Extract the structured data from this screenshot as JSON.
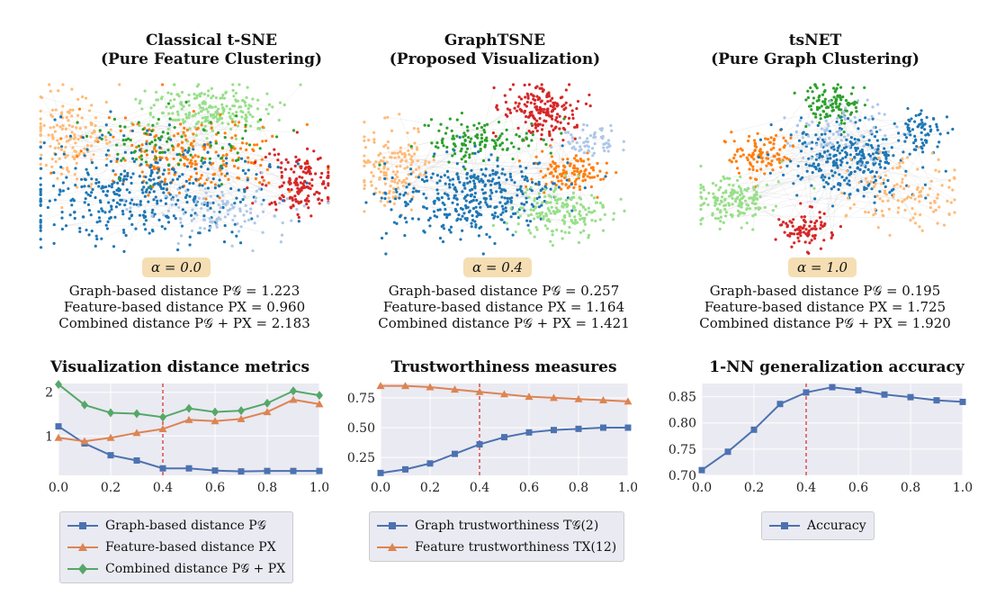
{
  "panels": [
    {
      "title_1": "Classical t-SNE",
      "title_2": "(Pure Feature Clustering)",
      "alpha": "α = 0.0",
      "metrics": [
        "Graph-based distance P𝒢 = 1.223",
        "Feature-based distance PX = 0.960",
        "Combined distance P𝒢 + PX = 2.183"
      ]
    },
    {
      "title_1": "GraphTSNE",
      "title_2": "(Proposed Visualization)",
      "alpha": "α = 0.4",
      "metrics": [
        "Graph-based distance P𝒢 = 0.257",
        "Feature-based distance PX = 1.164",
        "Combined distance P𝒢 + PX = 1.421"
      ]
    },
    {
      "title_1": "tsNET",
      "title_2": "(Pure Graph Clustering)",
      "alpha": "α = 1.0",
      "metrics": [
        "Graph-based distance P𝒢 = 0.195",
        "Feature-based distance PX = 1.725",
        "Combined distance P𝒢 + PX = 1.920"
      ]
    }
  ],
  "colors": {
    "blue": "#4c72b0",
    "orange": "#dd8452",
    "green": "#55a868",
    "red_line": "#d62728",
    "bg": "#eaeaf2",
    "grid": "#ffffff",
    "clusters": [
      "#1f77b4",
      "#ff7f0e",
      "#2ca02c",
      "#d62728",
      "#98df8a",
      "#ffbb78",
      "#aec7e8"
    ]
  },
  "chart_data": [
    {
      "type": "line",
      "title": "Visualization distance metrics",
      "x": [
        0.0,
        0.1,
        0.2,
        0.3,
        0.4,
        0.5,
        0.6,
        0.7,
        0.8,
        0.9,
        1.0
      ],
      "xlim": [
        0,
        1
      ],
      "ylim": [
        0.1,
        2.2
      ],
      "xticks": [
        "0.0",
        "0.2",
        "0.4",
        "0.6",
        "0.8",
        "1.0"
      ],
      "yticks": [
        "1",
        "2"
      ],
      "ytick_values": [
        1,
        2
      ],
      "marker_x": 0.4,
      "series": [
        {
          "name": "Graph-based distance P𝒢",
          "color": "blue",
          "marker": "square",
          "values": [
            1.22,
            0.83,
            0.56,
            0.44,
            0.26,
            0.26,
            0.21,
            0.19,
            0.2,
            0.2,
            0.2
          ]
        },
        {
          "name": "Feature-based distance PX",
          "color": "orange",
          "marker": "triangle",
          "values": [
            0.96,
            0.88,
            0.96,
            1.07,
            1.16,
            1.37,
            1.34,
            1.39,
            1.55,
            1.83,
            1.73
          ]
        },
        {
          "name": "Combined distance P𝒢 + PX",
          "color": "green",
          "marker": "diamond",
          "values": [
            2.18,
            1.71,
            1.53,
            1.51,
            1.43,
            1.63,
            1.55,
            1.58,
            1.75,
            2.03,
            1.93
          ]
        }
      ],
      "legend": "below"
    },
    {
      "type": "line",
      "title": "Trustworthiness measures",
      "x": [
        0.0,
        0.1,
        0.2,
        0.3,
        0.4,
        0.5,
        0.6,
        0.7,
        0.8,
        0.9,
        1.0
      ],
      "xlim": [
        0,
        1
      ],
      "ylim": [
        0.1,
        0.87
      ],
      "xticks": [
        "0.0",
        "0.2",
        "0.4",
        "0.6",
        "0.8",
        "1.0"
      ],
      "yticks": [
        "0.25",
        "0.50",
        "0.75"
      ],
      "ytick_values": [
        0.25,
        0.5,
        0.75
      ],
      "marker_x": 0.4,
      "series": [
        {
          "name": "Graph trustworthiness T𝒢(2)",
          "color": "blue",
          "marker": "square",
          "values": [
            0.12,
            0.15,
            0.2,
            0.28,
            0.36,
            0.42,
            0.46,
            0.48,
            0.49,
            0.5,
            0.5
          ]
        },
        {
          "name": "Feature trustworthiness TX(12)",
          "color": "orange",
          "marker": "triangle",
          "values": [
            0.85,
            0.85,
            0.84,
            0.82,
            0.8,
            0.78,
            0.76,
            0.75,
            0.74,
            0.73,
            0.72
          ]
        }
      ],
      "legend": "below"
    },
    {
      "type": "line",
      "title": "1-NN generalization accuracy",
      "x": [
        0.0,
        0.1,
        0.2,
        0.3,
        0.4,
        0.5,
        0.6,
        0.7,
        0.8,
        0.9,
        1.0
      ],
      "xlim": [
        0,
        1
      ],
      "ylim": [
        0.7,
        0.875
      ],
      "xticks": [
        "0.0",
        "0.2",
        "0.4",
        "0.6",
        "0.8",
        "1.0"
      ],
      "yticks": [
        "0.70",
        "0.75",
        "0.80",
        "0.85"
      ],
      "ytick_values": [
        0.7,
        0.75,
        0.8,
        0.85
      ],
      "marker_x": 0.4,
      "series": [
        {
          "name": "Accuracy",
          "color": "blue",
          "marker": "square",
          "values": [
            0.71,
            0.745,
            0.787,
            0.836,
            0.858,
            0.868,
            0.862,
            0.854,
            0.849,
            0.843,
            0.84
          ]
        }
      ],
      "legend": "below"
    }
  ]
}
